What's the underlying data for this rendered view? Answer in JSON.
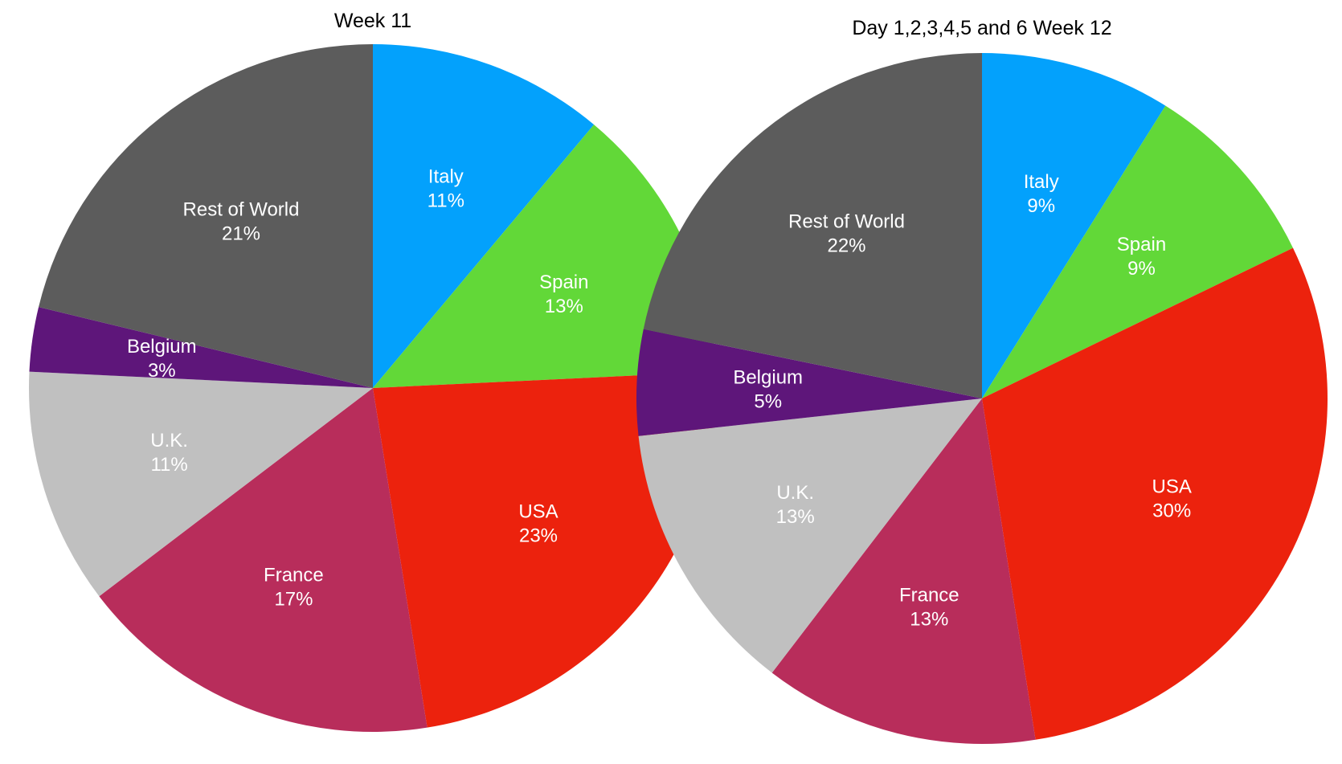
{
  "chart_data": [
    {
      "type": "pie",
      "title": "Week 11",
      "colors": {
        "Italy": "#03a1fc",
        "Spain": "#62d838",
        "USA": "#ec220d",
        "France": "#b82d5b",
        "U.K.": "#c0c0c0",
        "Belgium": "#5e167a",
        "Rest of World": "#5c5c5c"
      },
      "slices": [
        {
          "label": "Italy",
          "value": 11,
          "value_label": "11%"
        },
        {
          "label": "Spain",
          "value": 13,
          "value_label": "13%"
        },
        {
          "label": "USA",
          "value": 23,
          "value_label": "23%"
        },
        {
          "label": "France",
          "value": 17,
          "value_label": "17%"
        },
        {
          "label": "U.K.",
          "value": 11,
          "value_label": "11%"
        },
        {
          "label": "Belgium",
          "value": 3,
          "value_label": "3%"
        },
        {
          "label": "Rest of World",
          "value": 21,
          "value_label": "21%"
        }
      ]
    },
    {
      "type": "pie",
      "title": "Day 1,2,3,4,5 and 6 Week 12",
      "colors": {
        "Italy": "#03a1fc",
        "Spain": "#62d838",
        "USA": "#ec220d",
        "France": "#b82d5b",
        "U.K.": "#c0c0c0",
        "Belgium": "#5e167a",
        "Rest of World": "#5c5c5c"
      },
      "slices": [
        {
          "label": "Italy",
          "value": 9,
          "value_label": "9%"
        },
        {
          "label": "Spain",
          "value": 9,
          "value_label": "9%"
        },
        {
          "label": "USA",
          "value": 30,
          "value_label": "30%"
        },
        {
          "label": "France",
          "value": 13,
          "value_label": "13%"
        },
        {
          "label": "U.K.",
          "value": 13,
          "value_label": "13%"
        },
        {
          "label": "Belgium",
          "value": 5,
          "value_label": "5%"
        },
        {
          "label": "Rest of World",
          "value": 22,
          "value_label": "22%"
        }
      ]
    }
  ]
}
